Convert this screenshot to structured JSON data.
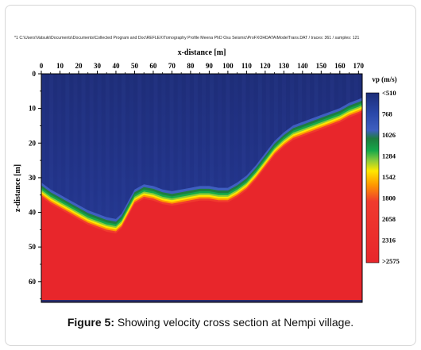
{
  "file_path": "*1 C:\\Users\\Vatsuki\\Documents\\Documents\\Collected Program and Doc\\REFLEX\\Tomography Profile Meena PhD Osu Seismic\\ProFXOHDATA\\ModelTrans.DAT / traces: 361 / samples: 121",
  "caption": {
    "label": "Figure 5:",
    "text": " Showing velocity cross section at Nempi village."
  },
  "chart_data": {
    "type": "heatmap",
    "xlabel": "x-distance [m]",
    "ylabel": "z-distance [m]",
    "xlim": [
      0,
      172
    ],
    "ylim": [
      0,
      66
    ],
    "x_ticks": [
      "0",
      "10",
      "20",
      "30",
      "40",
      "50",
      "60",
      "70",
      "80",
      "90",
      "100",
      "110",
      "120",
      "130",
      "140",
      "150",
      "160",
      "170"
    ],
    "y_ticks": [
      "0",
      "10",
      "20",
      "30",
      "40",
      "50",
      "60"
    ],
    "colorbar": {
      "title": "vp (m/s)",
      "labels": [
        "<510",
        "768",
        "1026",
        "1284",
        "1542",
        "1800",
        "2058",
        "2316",
        ">2575"
      ],
      "colors": [
        "#1c2d78",
        "#2a47a8",
        "#3f5fc0",
        "#1b7a3c",
        "#16a84a",
        "#8dcc3a",
        "#ffe800",
        "#ff9a00",
        "#f03a2e",
        "#e8262b"
      ]
    },
    "interface_depth": {
      "x": [
        0,
        5,
        10,
        15,
        20,
        25,
        30,
        35,
        40,
        43,
        46,
        50,
        55,
        60,
        65,
        70,
        75,
        80,
        85,
        90,
        95,
        100,
        105,
        110,
        115,
        120,
        125,
        130,
        135,
        140,
        145,
        150,
        155,
        160,
        165,
        170,
        172
      ],
      "depth": [
        34,
        36,
        37.5,
        39,
        40.5,
        42,
        43,
        44,
        44.5,
        43,
        40,
        36,
        34.5,
        35,
        36,
        36.5,
        36,
        35.5,
        35,
        35,
        35.5,
        35.5,
        34,
        32,
        29,
        25.5,
        22,
        19.5,
        17.5,
        16.5,
        15.5,
        14.5,
        13.5,
        12.5,
        11,
        10,
        9.5
      ]
    }
  }
}
